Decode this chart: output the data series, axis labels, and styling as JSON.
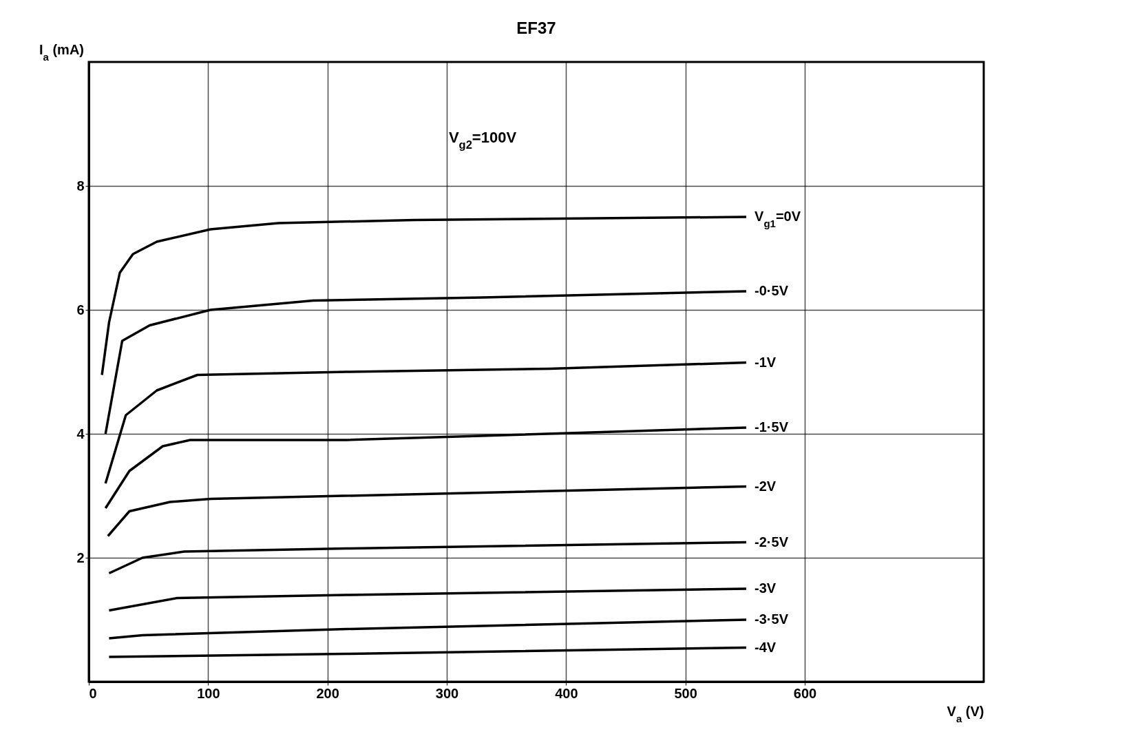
{
  "chart_data": {
    "type": "line",
    "title": "EF37",
    "xlabel": "V$_{a}$ (V)",
    "ylabel": "I$_{a}$ (mA)",
    "annotations": [
      "V$_{g2}$=100V"
    ],
    "xlim": [
      0,
      750
    ],
    "ylim": [
      0,
      10
    ],
    "xticks": [
      0,
      100,
      200,
      300,
      400,
      500,
      600
    ],
    "yticks": [
      2,
      4,
      6,
      8
    ],
    "grid": true,
    "legend": false,
    "marker": "none",
    "line_style": "solid",
    "series": [
      {
        "name": "V$_{g1}$=0V",
        "color": "#000000",
        "x": [
          11,
          17,
          26,
          37,
          57,
          102,
          159,
          273,
          551
        ],
        "values": [
          4.95,
          5.8,
          6.6,
          6.9,
          7.1,
          7.3,
          7.4,
          7.45,
          7.5
        ]
      },
      {
        "name": "-0·5V",
        "color": "#000000",
        "x": [
          14,
          28,
          51,
          102,
          188,
          330,
          551
        ],
        "values": [
          4.0,
          5.5,
          5.75,
          6.0,
          6.15,
          6.2,
          6.3
        ]
      },
      {
        "name": "-1V",
        "color": "#000000",
        "x": [
          14,
          31,
          57,
          91,
          216,
          386,
          551
        ],
        "values": [
          3.2,
          4.3,
          4.7,
          4.95,
          5.0,
          5.05,
          5.15
        ]
      },
      {
        "name": "-1·5V",
        "color": "#000000",
        "x": [
          14,
          34,
          62,
          85,
          216,
          551
        ],
        "values": [
          2.8,
          3.4,
          3.8,
          3.9,
          3.9,
          4.1
        ]
      },
      {
        "name": "-2V",
        "color": "#000000",
        "x": [
          16,
          34,
          68,
          102,
          330,
          551
        ],
        "values": [
          2.35,
          2.75,
          2.9,
          2.95,
          3.05,
          3.15
        ]
      },
      {
        "name": "-2·5V",
        "color": "#000000",
        "x": [
          17,
          45,
          80,
          216,
          551
        ],
        "values": [
          1.75,
          2.0,
          2.1,
          2.15,
          2.25
        ]
      },
      {
        "name": "-3V",
        "color": "#000000",
        "x": [
          17,
          74,
          216,
          551
        ],
        "values": [
          1.15,
          1.35,
          1.4,
          1.5
        ]
      },
      {
        "name": "-3·5V",
        "color": "#000000",
        "x": [
          17,
          45,
          216,
          551
        ],
        "values": [
          0.7,
          0.75,
          0.85,
          1.0
        ]
      },
      {
        "name": "-4V",
        "color": "#000000",
        "x": [
          17,
          216,
          551
        ],
        "values": [
          0.4,
          0.45,
          0.55
        ]
      }
    ]
  }
}
